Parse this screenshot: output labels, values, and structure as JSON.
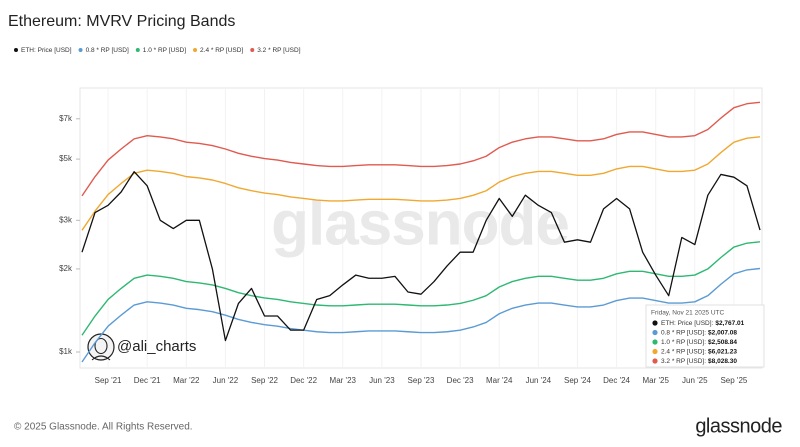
{
  "chart_data": {
    "type": "line",
    "title": "Ethereum: MVRV Pricing Bands",
    "log_scale": true,
    "grid": true,
    "x": [
      "2021-07",
      "2021-08",
      "2021-09",
      "2021-10",
      "2021-11",
      "2021-12",
      "2022-01",
      "2022-02",
      "2022-03",
      "2022-04",
      "2022-05",
      "2022-06",
      "2022-07",
      "2022-08",
      "2022-09",
      "2022-10",
      "2022-11",
      "2022-12",
      "2023-01",
      "2023-02",
      "2023-03",
      "2023-04",
      "2023-05",
      "2023-06",
      "2023-07",
      "2023-08",
      "2023-09",
      "2023-10",
      "2023-11",
      "2023-12",
      "2024-01",
      "2024-02",
      "2024-03",
      "2024-04",
      "2024-05",
      "2024-06",
      "2024-07",
      "2024-08",
      "2024-09",
      "2024-10",
      "2024-11",
      "2024-12",
      "2025-01",
      "2025-02",
      "2025-03",
      "2025-04",
      "2025-05",
      "2025-06",
      "2025-07",
      "2025-08",
      "2025-09",
      "2025-10",
      "2025-11"
    ],
    "xlim": [
      "2021-07",
      "2025-11"
    ],
    "xticks": [
      {
        "value": "2021-09",
        "label": "Sep '21"
      },
      {
        "value": "2021-12",
        "label": "Dec '21"
      },
      {
        "value": "2022-03",
        "label": "Mar '22"
      },
      {
        "value": "2022-06",
        "label": "Jun '22"
      },
      {
        "value": "2022-09",
        "label": "Sep '22"
      },
      {
        "value": "2022-12",
        "label": "Dec '22"
      },
      {
        "value": "2023-03",
        "label": "Mar '23"
      },
      {
        "value": "2023-06",
        "label": "Jun '23"
      },
      {
        "value": "2023-09",
        "label": "Sep '23"
      },
      {
        "value": "2023-12",
        "label": "Dec '23"
      },
      {
        "value": "2024-03",
        "label": "Mar '24"
      },
      {
        "value": "2024-06",
        "label": "Jun '24"
      },
      {
        "value": "2024-09",
        "label": "Sep '24"
      },
      {
        "value": "2024-12",
        "label": "Dec '24"
      },
      {
        "value": "2025-03",
        "label": "Mar '25"
      },
      {
        "value": "2025-06",
        "label": "Jun '25"
      },
      {
        "value": "2025-09",
        "label": "Sep '25"
      }
    ],
    "ylim": [
      875,
      9050
    ],
    "yticks": [
      {
        "value": 1000,
        "label": "$1k"
      },
      {
        "value": 2000,
        "label": "$2k"
      },
      {
        "value": 3000,
        "label": "$3k"
      },
      {
        "value": 5000,
        "label": "$5k"
      },
      {
        "value": 7000,
        "label": "$7k"
      }
    ],
    "series": [
      {
        "name": "ETH: Price [USD]",
        "color": "#111111",
        "values": [
          2300,
          3200,
          3400,
          3800,
          4500,
          4000,
          3000,
          2800,
          3000,
          3000,
          2000,
          1100,
          1500,
          1700,
          1350,
          1350,
          1200,
          1200,
          1550,
          1600,
          1750,
          1900,
          1850,
          1850,
          1880,
          1650,
          1620,
          1800,
          2050,
          2300,
          2300,
          3000,
          3600,
          3100,
          3700,
          3400,
          3200,
          2500,
          2550,
          2500,
          3300,
          3600,
          3300,
          2300,
          1900,
          1600,
          2600,
          2450,
          3700,
          4400,
          4300,
          4000,
          2767.01
        ]
      },
      {
        "name": "0.8 * RP [USD]",
        "color": "#5b9bd5",
        "values": [
          920,
          1080,
          1240,
          1360,
          1480,
          1520,
          1504,
          1480,
          1440,
          1424,
          1400,
          1360,
          1312,
          1280,
          1256,
          1240,
          1216,
          1200,
          1184,
          1176,
          1176,
          1184,
          1192,
          1192,
          1192,
          1184,
          1176,
          1176,
          1184,
          1200,
          1232,
          1280,
          1376,
          1440,
          1480,
          1504,
          1504,
          1480,
          1456,
          1456,
          1480,
          1536,
          1568,
          1568,
          1536,
          1504,
          1504,
          1520,
          1600,
          1760,
          1920,
          1984,
          2007.08
        ]
      },
      {
        "name": "1.0 * RP [USD]",
        "color": "#2eb872",
        "values": [
          1150,
          1350,
          1550,
          1700,
          1850,
          1900,
          1880,
          1850,
          1800,
          1780,
          1750,
          1700,
          1640,
          1600,
          1570,
          1550,
          1520,
          1500,
          1480,
          1470,
          1470,
          1480,
          1490,
          1490,
          1490,
          1480,
          1470,
          1470,
          1480,
          1500,
          1540,
          1600,
          1720,
          1800,
          1850,
          1880,
          1880,
          1850,
          1820,
          1820,
          1850,
          1920,
          1960,
          1960,
          1920,
          1880,
          1880,
          1900,
          2000,
          2200,
          2400,
          2480,
          2508.84
        ]
      },
      {
        "name": "2.4 * RP [USD]",
        "color": "#f0a830",
        "values": [
          2760,
          3240,
          3720,
          4080,
          4440,
          4560,
          4512,
          4440,
          4320,
          4272,
          4200,
          4080,
          3936,
          3840,
          3768,
          3720,
          3648,
          3600,
          3552,
          3528,
          3528,
          3552,
          3576,
          3576,
          3576,
          3552,
          3528,
          3528,
          3552,
          3600,
          3696,
          3840,
          4128,
          4320,
          4440,
          4512,
          4512,
          4440,
          4368,
          4368,
          4440,
          4608,
          4704,
          4704,
          4608,
          4512,
          4512,
          4560,
          4800,
          5280,
          5760,
          5952,
          6021.23
        ]
      },
      {
        "name": "3.2 * RP [USD]",
        "color": "#e05a4f",
        "values": [
          3680,
          4320,
          4960,
          5440,
          5920,
          6080,
          6016,
          5920,
          5760,
          5696,
          5600,
          5440,
          5248,
          5120,
          5024,
          4960,
          4864,
          4800,
          4736,
          4704,
          4704,
          4736,
          4768,
          4768,
          4768,
          4736,
          4704,
          4704,
          4736,
          4800,
          4928,
          5120,
          5504,
          5760,
          5920,
          6016,
          6016,
          5920,
          5824,
          5824,
          5920,
          6144,
          6272,
          6272,
          6144,
          6016,
          6016,
          6080,
          6400,
          7040,
          7680,
          7936,
          8028.3
        ]
      }
    ],
    "tooltip": {
      "title": "Friday, Nov 21 2025 UTC",
      "items": [
        {
          "label": "ETH: Price [USD]:",
          "value_label": "$2,767.01"
        },
        {
          "label": "0.8 * RP [USD]:",
          "value_label": "$2,007.08"
        },
        {
          "label": "1.0 * RP [USD]:",
          "value_label": "$2,508.84"
        },
        {
          "label": "2.4 * RP [USD]:",
          "value_label": "$6,021.23"
        },
        {
          "label": "3.2 * RP [USD]:",
          "value_label": "$8,028.30"
        }
      ]
    },
    "watermark": "glassnode",
    "handle": "@ali_charts",
    "footer": "© 2025 Glassnode. All Rights Reserved.",
    "brand": "glassnode"
  }
}
